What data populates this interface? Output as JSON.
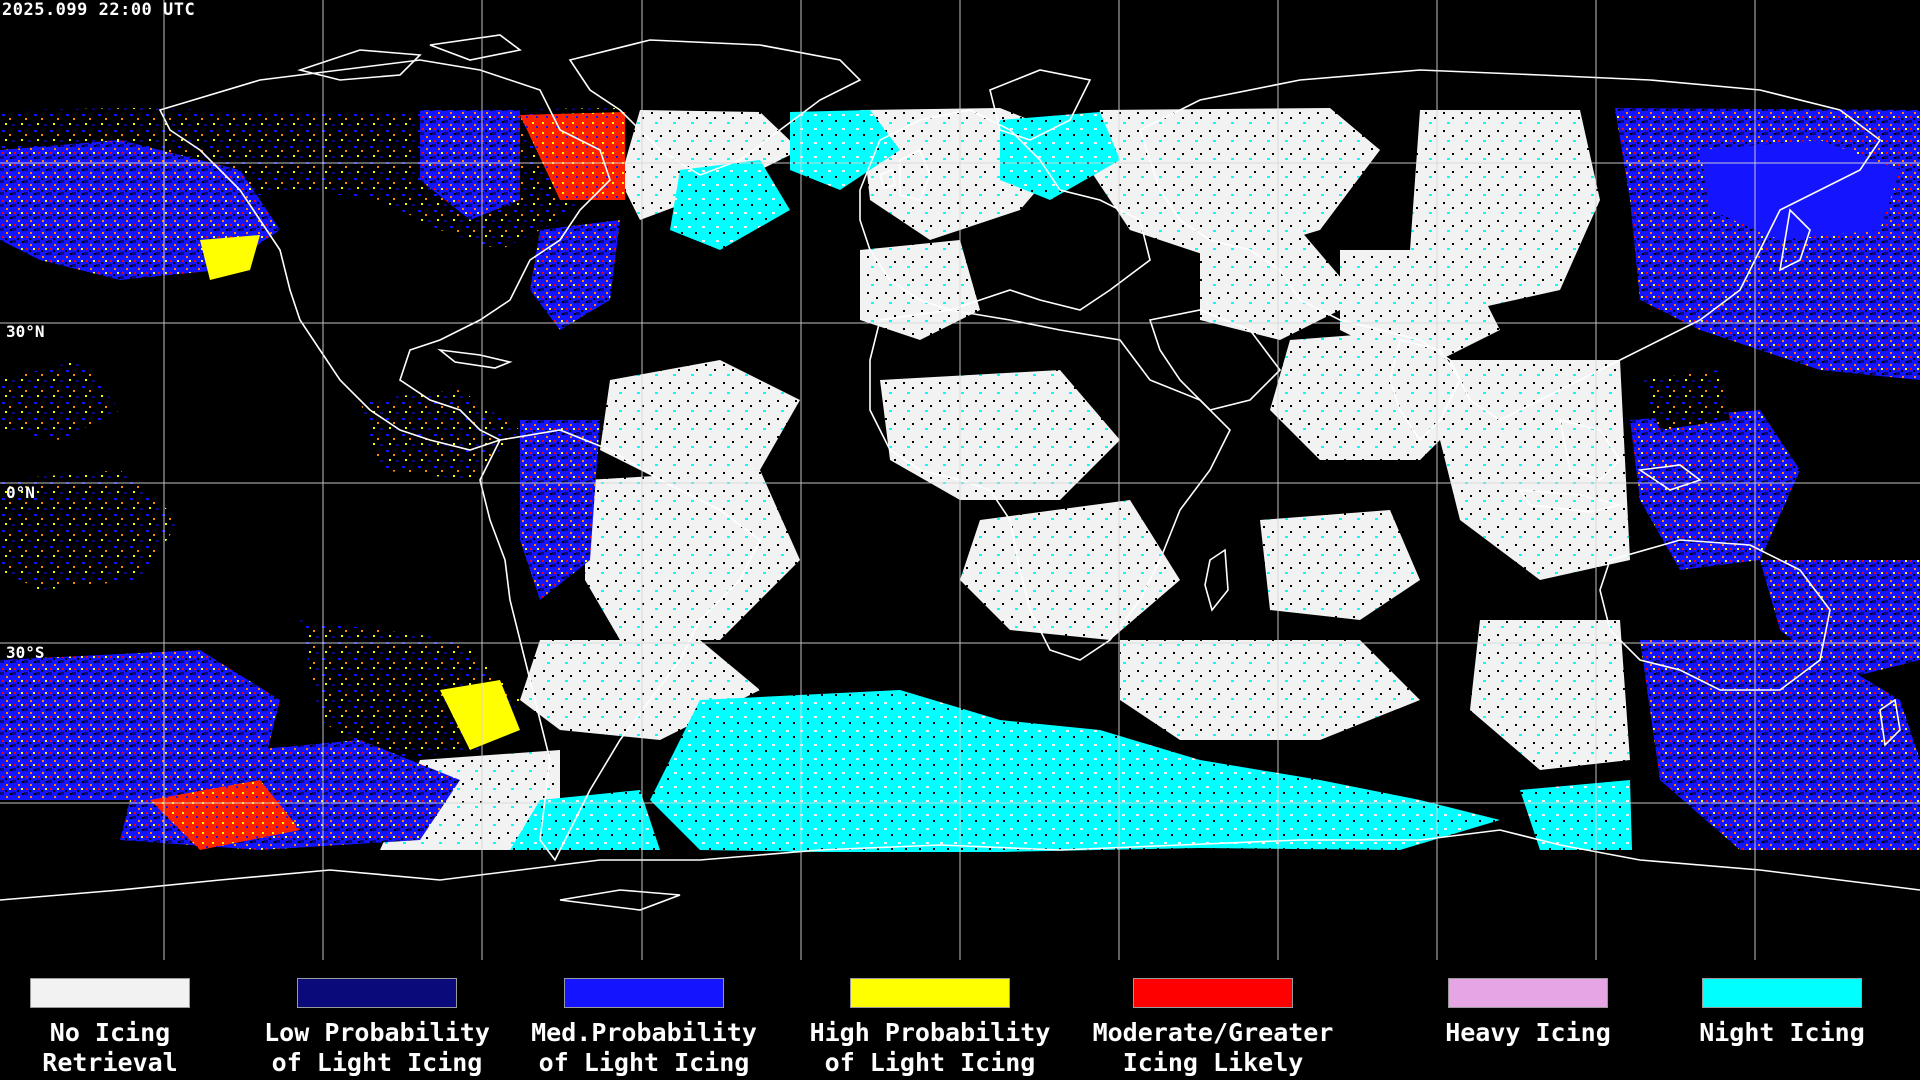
{
  "header": {
    "timestamp": "2025.099 22:00 UTC"
  },
  "latitude_labels": [
    "30°N",
    "0°N",
    "30°S"
  ],
  "colors": {
    "no_icing": "#f2f2f2",
    "low_prob": "#0a0a7a",
    "med_prob": "#1414ff",
    "high_prob": "#ffff00",
    "moderate": "#ff0000",
    "heavy": "#e6a6e6",
    "night": "#00ffff",
    "coastline": "#ffffff",
    "grid": "#d8d8d8"
  },
  "legend": {
    "items": [
      {
        "line1": "No Icing",
        "line2": "Retrieval",
        "color": "#f2f2f2"
      },
      {
        "line1": "Low Probability",
        "line2": "of Light Icing",
        "color": "#0a0a7a"
      },
      {
        "line1": "Med.Probability",
        "line2": "of Light Icing",
        "color": "#1414ff"
      },
      {
        "line1": "High Probability",
        "line2": "of Light Icing",
        "color": "#ffff00"
      },
      {
        "line1": "Moderate/Greater",
        "line2": "Icing Likely",
        "color": "#ff0000"
      },
      {
        "line1": "Heavy Icing",
        "line2": "",
        "color": "#e6a6e6"
      },
      {
        "line1": "Night Icing",
        "line2": "",
        "color": "#00ffff"
      }
    ]
  }
}
